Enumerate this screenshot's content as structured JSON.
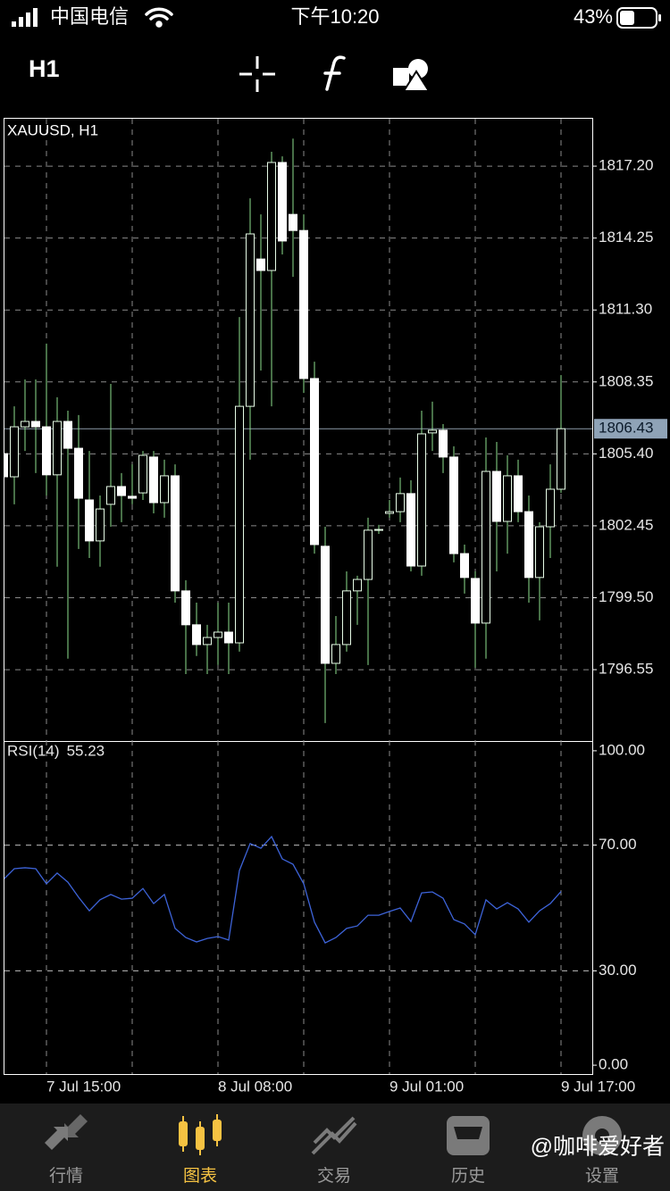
{
  "status_bar": {
    "carrier": "中国电信",
    "time": "下午10:20",
    "battery": "43%"
  },
  "toolbar": {
    "timeframe": "H1"
  },
  "chart_data": [
    {
      "type": "candlestick",
      "title": "XAUUSD, H1",
      "categories": [
        null,
        null,
        null,
        null,
        "7 Jul 15:00",
        null,
        null,
        null,
        null,
        null,
        null,
        null,
        null,
        null,
        null,
        null,
        null,
        null,
        null,
        null,
        "8 Jul 08:00",
        null,
        null,
        null,
        null,
        null,
        null,
        null,
        null,
        null,
        null,
        null,
        null,
        null,
        null,
        null,
        "9 Jul 01:00",
        null,
        null,
        null,
        null,
        null,
        null,
        null,
        null,
        null,
        null,
        null,
        null,
        null,
        null,
        null,
        "9 Jul 17:00"
      ],
      "open": [
        1805.41,
        1804.46,
        1806.51,
        1806.73,
        1806.51,
        1804.54,
        1806.73,
        1805.63,
        1803.51,
        1801.83,
        1803.33,
        1804.06,
        1803.66,
        1803.8,
        1805.27,
        1803.4,
        1804.5,
        1799.78,
        1798.39,
        1797.58,
        1797.87,
        1798.09,
        1797.65,
        1807.35,
        1813.39,
        1812.92,
        1817.35,
        1815.22,
        1814.56,
        1808.49,
        1801.61,
        1796.81,
        1797.58,
        1799.78,
        1800.25,
        1802.27,
        1802.96,
        1803.03,
        1803.77,
        1800.8,
        1806.26,
        1806.37,
        1805.27,
        1801.31,
        1800.29,
        1798.46,
        1804.68,
        1802.63,
        1804.5,
        1803.03,
        1800.33,
        1802.41,
        1803.95
      ],
      "high": [
        1806.44,
        1807.35,
        1808.45,
        1808.45,
        1809.92,
        1807.72,
        1807.17,
        1806.99,
        1805.52,
        1803.69,
        1808.27,
        1804.61,
        1804.97,
        1805.52,
        1805.52,
        1805.16,
        1804.97,
        1800.22,
        1799.3,
        1798.39,
        1799.3,
        1799.3,
        1811.01,
        1815.88,
        1815.22,
        1817.79,
        1817.6,
        1818.33,
        1815.22,
        1809.18,
        1802.41,
        1798.75,
        1800.58,
        1800.4,
        1802.78,
        1802.49,
        1803.51,
        1804.43,
        1804.32,
        1807.17,
        1807.54,
        1806.62,
        1805.71,
        1801.68,
        1800.58,
        1806.07,
        1805.89,
        1805.34,
        1805.16,
        1803.69,
        1802.6,
        1804.97,
        1808.63
      ],
      "low": [
        1803.51,
        1803.33,
        1805.52,
        1804.61,
        1803.69,
        1800.77,
        1797.0,
        1801.5,
        1801.13,
        1800.77,
        1802.41,
        1802.6,
        1803.33,
        1803.51,
        1802.96,
        1802.78,
        1799.3,
        1796.37,
        1797.11,
        1796.37,
        1796.74,
        1796.37,
        1797.29,
        1805.16,
        1808.82,
        1807.35,
        1813.58,
        1812.66,
        1807.9,
        1801.31,
        1794.36,
        1796.37,
        1797.29,
        1798.39,
        1796.74,
        1802.12,
        1802.78,
        1802.6,
        1800.58,
        1800.4,
        1805.52,
        1804.61,
        1800.95,
        1799.67,
        1796.63,
        1797.0,
        1800.58,
        1801.31,
        1802.6,
        1799.3,
        1798.57,
        1801.13,
        1803.8
      ],
      "close": [
        1804.46,
        1806.51,
        1806.73,
        1806.51,
        1804.54,
        1806.73,
        1805.63,
        1803.58,
        1801.83,
        1803.14,
        1804.06,
        1803.69,
        1803.58,
        1805.34,
        1803.4,
        1804.5,
        1799.78,
        1798.39,
        1797.58,
        1797.87,
        1798.09,
        1797.65,
        1807.35,
        1814.42,
        1812.92,
        1817.35,
        1814.13,
        1814.56,
        1808.49,
        1801.68,
        1796.81,
        1797.58,
        1799.78,
        1800.25,
        1802.27,
        1802.3,
        1803.03,
        1803.77,
        1800.8,
        1806.22,
        1806.37,
        1805.27,
        1801.31,
        1800.33,
        1798.46,
        1804.68,
        1802.63,
        1804.5,
        1803.03,
        1800.33,
        1802.41,
        1803.95,
        1806.43
      ],
      "ylim": [
        1793.66,
        1819.18
      ],
      "yticks": [
        {
          "value": 1817.2,
          "label": "1817.20"
        },
        1814.25,
        {
          "value": 1811.3,
          "label": "1811.30"
        },
        1808.35,
        {
          "value": 1805.4,
          "label": "1805.40"
        },
        1802.45,
        {
          "value": 1799.5,
          "label": "1799.50"
        },
        1796.55
      ],
      "current_price": 1806.43,
      "grid": true,
      "up_color": "#000000",
      "up_border": "#e6fbe6",
      "down_color": "#ffffff",
      "wick_color": "#8ee08e"
    },
    {
      "type": "line",
      "title": "RSI(14)",
      "values": [
        59.1,
        62.5,
        62.8,
        62.5,
        57.7,
        61.1,
        58.2,
        53.4,
        49.1,
        52.6,
        54.3,
        52.8,
        53.1,
        56.2,
        51.4,
        54.3,
        43.5,
        40.6,
        39.2,
        40.3,
        40.9,
        39.8,
        61.9,
        70.5,
        69.0,
        72.7,
        65.6,
        63.9,
        57.7,
        45.5,
        38.9,
        40.6,
        43.5,
        44.3,
        47.7,
        47.7,
        48.9,
        50.0,
        45.7,
        54.8,
        55.1,
        53.1,
        46.3,
        44.9,
        41.5,
        52.6,
        49.7,
        51.7,
        49.7,
        45.5,
        49.1,
        51.4,
        55.23
      ],
      "color": "#3d63d8",
      "ylim": [
        -3.1,
        103.1
      ],
      "yticks": [
        {
          "value": 100,
          "label": "100.00"
        },
        {
          "value": 70,
          "label": "70.00"
        },
        {
          "value": 30,
          "label": "30.00"
        },
        {
          "value": 0,
          "label": "0.00"
        }
      ],
      "levels": [
        70,
        30
      ]
    }
  ],
  "tab_bar": {
    "tabs": [
      "行情",
      "图表",
      "交易",
      "历史",
      "设置"
    ],
    "active": 1
  },
  "watermark": "@咖啡爱好者"
}
